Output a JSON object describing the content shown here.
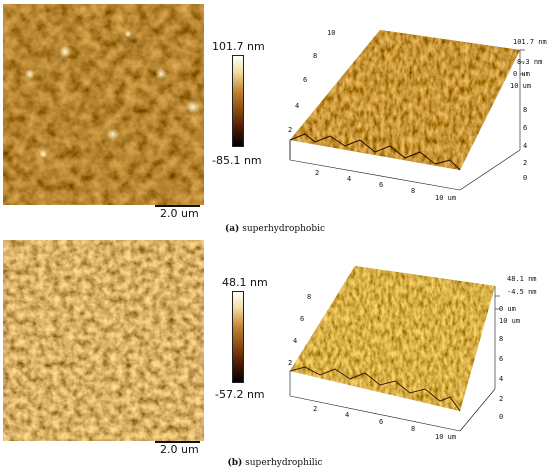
{
  "panels": [
    {
      "id": "a",
      "caption_letter": "(a)",
      "caption_text": "superhydrophobic",
      "scale_bar": "2.0 um",
      "colorbar_max": "101.7 nm",
      "colorbar_min": "-85.1 nm",
      "z_label_top": "101.7 nm",
      "z_label_mid": "8.3 nm",
      "z_label_bottom": "0 um",
      "x_ticks": [
        "2",
        "4",
        "6",
        "8",
        "10 um"
      ],
      "y_ticks": [
        "0",
        "2",
        "4",
        "6",
        "8",
        "10 um"
      ],
      "back_ticks": [
        "10",
        "8",
        "6",
        "4",
        "2"
      ]
    },
    {
      "id": "b",
      "caption_letter": "(b)",
      "caption_text": "superhydrophilic",
      "scale_bar": "2.0 um",
      "colorbar_max": "48.1 nm",
      "colorbar_min": "-57.2 nm",
      "z_label_top": "48.1 nm",
      "z_label_mid": "-4.5 nm",
      "z_label_bottom": "0 um",
      "x_ticks": [
        "2",
        "4",
        "6",
        "8",
        "10 um"
      ],
      "y_ticks": [
        "0",
        "2",
        "4",
        "6",
        "8",
        "10 um"
      ],
      "back_ticks": [
        "8",
        "6",
        "4",
        "2"
      ]
    }
  ],
  "colors": {
    "afm_dark": "#2a0d00",
    "afm_mid": "#8a4a10",
    "afm_bright": "#f3e2a0"
  }
}
